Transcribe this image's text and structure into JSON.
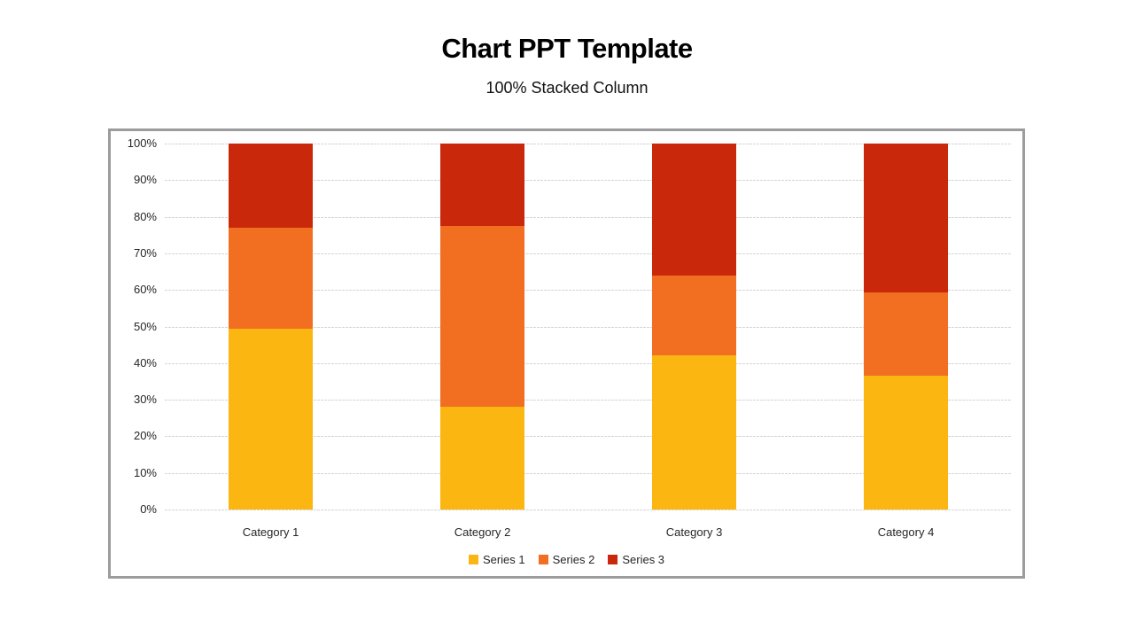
{
  "header": {
    "title": "Chart PPT Template",
    "subtitle": "100% Stacked Column"
  },
  "chart_data": {
    "type": "bar",
    "subtype": "100-percent-stacked-column",
    "title": "Chart PPT Template",
    "subtitle": "100% Stacked Column",
    "categories": [
      "Category 1",
      "Category 2",
      "Category 3",
      "Category 4"
    ],
    "series": [
      {
        "name": "Series 1",
        "color": "#FBB612",
        "percent_values": [
          49.4,
          28.1,
          42.2,
          36.6
        ]
      },
      {
        "name": "Series 2",
        "color": "#F26F21",
        "percent_values": [
          27.6,
          49.4,
          21.7,
          22.8
        ]
      },
      {
        "name": "Series 3",
        "color": "#C9280A",
        "percent_values": [
          23.0,
          22.5,
          36.1,
          40.6
        ]
      }
    ],
    "stack_order_bottom_to_top": [
      "Series 1",
      "Series 2",
      "Series 3"
    ],
    "y_axis": {
      "min": 0,
      "max": 100,
      "tick_step": 10,
      "tick_labels": [
        "100%",
        "90%",
        "80%",
        "70%",
        "60%",
        "50%",
        "40%",
        "30%",
        "20%",
        "10%",
        "0%"
      ]
    },
    "xlabel": "",
    "ylabel": "",
    "grid": true,
    "gridline_color": "#D6D6D6",
    "frame_border_color": "#9C9C9C",
    "legend_position": "bottom"
  }
}
